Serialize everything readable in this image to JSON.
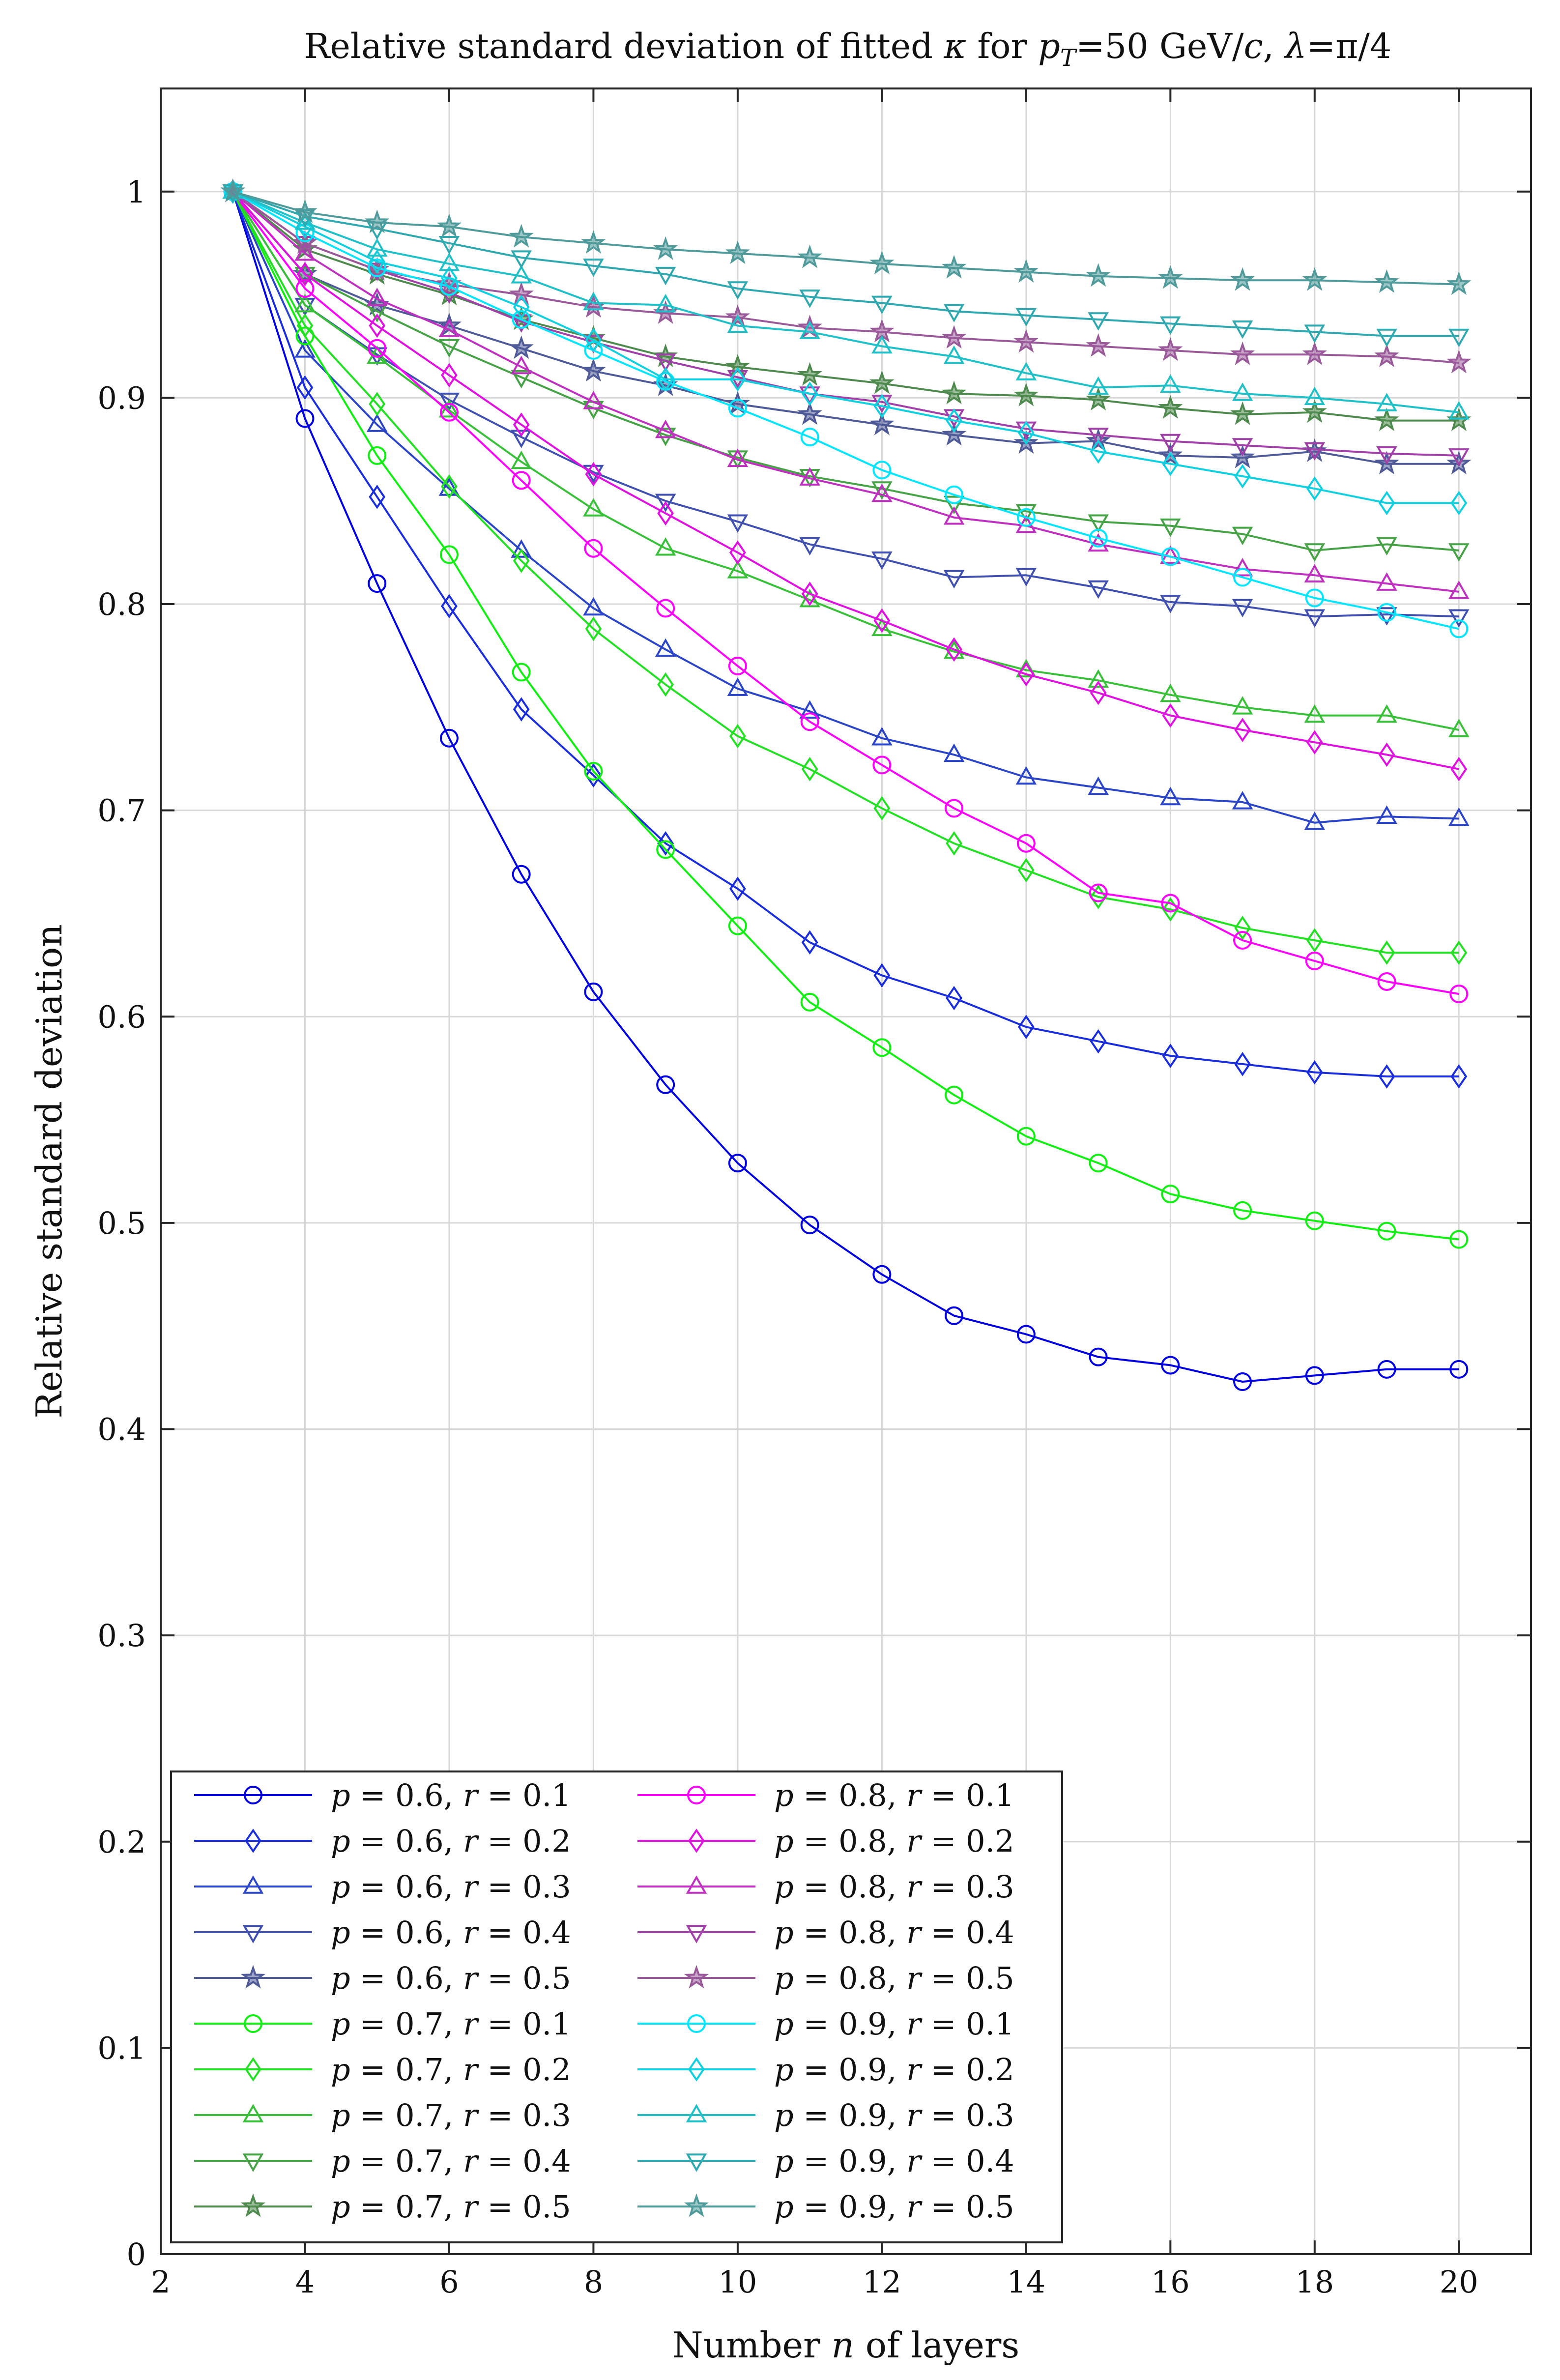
{
  "chart_data": {
    "type": "line",
    "title": "Relative standard deviation of fitted κ for p_T=50 GeV/c, λ=π/4",
    "title_parts": {
      "prefix": "Relative standard deviation of fitted ",
      "kappa": "κ",
      "for": " for ",
      "p": "p",
      "sub_T": "T",
      "pt_value": "=50 GeV/",
      "c": "c",
      "comma": ", ",
      "lambda": "λ",
      "lambda_value": "=π/4"
    },
    "xlabel": "Number n of layers",
    "xlabel_parts": {
      "before": "Number ",
      "n": "n",
      "after": " of layers"
    },
    "ylabel": "Relative standard deviation",
    "xlim": [
      2,
      21
    ],
    "ylim": [
      0,
      1.05
    ],
    "xticks": [
      2,
      4,
      6,
      8,
      10,
      12,
      14,
      16,
      18,
      20
    ],
    "yticks": [
      0,
      0.1,
      0.2,
      0.3,
      0.4,
      0.5,
      0.6,
      0.7,
      0.8,
      0.9,
      1
    ],
    "ytick_labels": [
      "0",
      "0.1",
      "0.2",
      "0.3",
      "0.4",
      "0.5",
      "0.6",
      "0.7",
      "0.8",
      "0.9",
      "1"
    ],
    "grid": true,
    "legend_position": "bottom-left",
    "x": [
      3,
      4,
      5,
      6,
      7,
      8,
      9,
      10,
      11,
      12,
      13,
      14,
      15,
      16,
      17,
      18,
      19,
      20
    ],
    "series": [
      {
        "name": "p = 0.6, r = 0.1",
        "p": "0.6",
        "r": "0.1",
        "color": "#0000e0",
        "marker": "circle",
        "values": [
          1.0,
          0.89,
          0.81,
          0.735,
          0.669,
          0.612,
          0.567,
          0.529,
          0.499,
          0.475,
          0.455,
          0.446,
          0.435,
          0.431,
          0.423,
          0.426,
          0.429,
          0.429
        ]
      },
      {
        "name": "p = 0.6, r = 0.2",
        "p": "0.6",
        "r": "0.2",
        "color": "#1a2ddc",
        "marker": "diamond",
        "values": [
          1.0,
          0.905,
          0.852,
          0.799,
          0.749,
          0.717,
          0.684,
          0.662,
          0.636,
          0.62,
          0.609,
          0.595,
          0.588,
          0.581,
          0.577,
          0.573,
          0.571,
          0.571
        ]
      },
      {
        "name": "p = 0.6, r = 0.3",
        "p": "0.6",
        "r": "0.3",
        "color": "#2b45c8",
        "marker": "triangle-up",
        "values": [
          1.0,
          0.923,
          0.887,
          0.856,
          0.826,
          0.798,
          0.778,
          0.759,
          0.748,
          0.735,
          0.727,
          0.716,
          0.711,
          0.706,
          0.704,
          0.694,
          0.697,
          0.696
        ]
      },
      {
        "name": "p = 0.6, r = 0.4",
        "p": "0.6",
        "r": "0.4",
        "color": "#3f50b0",
        "marker": "triangle-down",
        "values": [
          1.0,
          0.945,
          0.921,
          0.899,
          0.881,
          0.864,
          0.85,
          0.84,
          0.829,
          0.822,
          0.813,
          0.814,
          0.808,
          0.801,
          0.799,
          0.794,
          0.795,
          0.794
        ]
      },
      {
        "name": "p = 0.6, r = 0.5",
        "p": "0.6",
        "r": "0.5",
        "color": "#4f5a98",
        "marker": "star",
        "values": [
          1.0,
          0.96,
          0.945,
          0.935,
          0.924,
          0.913,
          0.906,
          0.897,
          0.892,
          0.887,
          0.882,
          0.878,
          0.879,
          0.872,
          0.871,
          0.874,
          0.868,
          0.868
        ]
      },
      {
        "name": "p = 0.7, r = 0.1",
        "p": "0.7",
        "r": "0.1",
        "color": "#10f010",
        "marker": "circle",
        "values": [
          1.0,
          0.93,
          0.872,
          0.824,
          0.767,
          0.719,
          0.681,
          0.644,
          0.607,
          0.585,
          0.562,
          0.542,
          0.529,
          0.514,
          0.506,
          0.501,
          0.496,
          0.492
        ]
      },
      {
        "name": "p = 0.7, r = 0.2",
        "p": "0.7",
        "r": "0.2",
        "color": "#22e022",
        "marker": "diamond",
        "values": [
          1.0,
          0.935,
          0.897,
          0.857,
          0.821,
          0.788,
          0.761,
          0.736,
          0.72,
          0.701,
          0.684,
          0.671,
          0.658,
          0.652,
          0.643,
          0.637,
          0.631,
          0.631
        ]
      },
      {
        "name": "p = 0.7, r = 0.3",
        "p": "0.7",
        "r": "0.3",
        "color": "#38c038",
        "marker": "triangle-up",
        "values": [
          1.0,
          0.945,
          0.92,
          0.894,
          0.869,
          0.846,
          0.827,
          0.816,
          0.802,
          0.788,
          0.777,
          0.768,
          0.763,
          0.756,
          0.75,
          0.746,
          0.746,
          0.739
        ]
      },
      {
        "name": "p = 0.7, r = 0.4",
        "p": "0.7",
        "r": "0.4",
        "color": "#45a245",
        "marker": "triangle-down",
        "values": [
          1.0,
          0.96,
          0.942,
          0.925,
          0.91,
          0.895,
          0.882,
          0.871,
          0.862,
          0.856,
          0.849,
          0.845,
          0.84,
          0.838,
          0.834,
          0.826,
          0.829,
          0.826
        ]
      },
      {
        "name": "p = 0.7, r = 0.5",
        "p": "0.7",
        "r": "0.5",
        "color": "#4e8a4e",
        "marker": "star",
        "values": [
          1.0,
          0.972,
          0.96,
          0.95,
          0.938,
          0.929,
          0.92,
          0.915,
          0.911,
          0.907,
          0.902,
          0.901,
          0.899,
          0.895,
          0.892,
          0.893,
          0.889,
          0.889
        ]
      },
      {
        "name": "p = 0.8, r = 0.1",
        "p": "0.8",
        "r": "0.1",
        "color": "#ff00ff",
        "marker": "circle",
        "values": [
          1.0,
          0.953,
          0.924,
          0.893,
          0.86,
          0.827,
          0.798,
          0.77,
          0.743,
          0.722,
          0.701,
          0.684,
          0.66,
          0.655,
          0.637,
          0.627,
          0.617,
          0.611
        ]
      },
      {
        "name": "p = 0.8, r = 0.2",
        "p": "0.8",
        "r": "0.2",
        "color": "#e010e0",
        "marker": "diamond",
        "values": [
          1.0,
          0.96,
          0.935,
          0.911,
          0.887,
          0.863,
          0.844,
          0.825,
          0.805,
          0.792,
          0.778,
          0.766,
          0.757,
          0.746,
          0.739,
          0.733,
          0.727,
          0.72
        ]
      },
      {
        "name": "p = 0.8, r = 0.3",
        "p": "0.8",
        "r": "0.3",
        "color": "#c030c0",
        "marker": "triangle-up",
        "values": [
          1.0,
          0.97,
          0.948,
          0.933,
          0.915,
          0.898,
          0.884,
          0.87,
          0.861,
          0.853,
          0.842,
          0.838,
          0.829,
          0.823,
          0.817,
          0.814,
          0.81,
          0.806
        ]
      },
      {
        "name": "p = 0.8, r = 0.4",
        "p": "0.8",
        "r": "0.4",
        "color": "#a040a8",
        "marker": "triangle-down",
        "values": [
          1.0,
          0.975,
          0.962,
          0.951,
          0.937,
          0.927,
          0.918,
          0.91,
          0.902,
          0.898,
          0.891,
          0.885,
          0.882,
          0.879,
          0.877,
          0.875,
          0.873,
          0.872
        ]
      },
      {
        "name": "p = 0.8, r = 0.5",
        "p": "0.8",
        "r": "0.5",
        "color": "#9a5a9a",
        "marker": "star",
        "values": [
          1.0,
          0.975,
          0.962,
          0.955,
          0.95,
          0.944,
          0.941,
          0.939,
          0.934,
          0.932,
          0.929,
          0.927,
          0.925,
          0.923,
          0.921,
          0.921,
          0.92,
          0.917
        ]
      },
      {
        "name": "p = 0.9, r = 0.1",
        "p": "0.9",
        "r": "0.1",
        "color": "#00e6ff",
        "marker": "circle",
        "values": [
          1.0,
          0.98,
          0.963,
          0.954,
          0.938,
          0.923,
          0.908,
          0.895,
          0.881,
          0.865,
          0.853,
          0.842,
          0.832,
          0.823,
          0.813,
          0.803,
          0.796,
          0.788
        ]
      },
      {
        "name": "p = 0.9, r = 0.2",
        "p": "0.9",
        "r": "0.2",
        "color": "#10d0e0",
        "marker": "diamond",
        "values": [
          1.0,
          0.983,
          0.966,
          0.958,
          0.944,
          0.928,
          0.909,
          0.909,
          0.902,
          0.896,
          0.889,
          0.883,
          0.874,
          0.868,
          0.862,
          0.856,
          0.849,
          0.849
        ]
      },
      {
        "name": "p = 0.9, r = 0.3",
        "p": "0.9",
        "r": "0.3",
        "color": "#20c0c8",
        "marker": "triangle-up",
        "values": [
          1.0,
          0.985,
          0.972,
          0.965,
          0.959,
          0.946,
          0.945,
          0.935,
          0.932,
          0.925,
          0.92,
          0.912,
          0.905,
          0.906,
          0.902,
          0.9,
          0.897,
          0.893
        ]
      },
      {
        "name": "p = 0.9, r = 0.4",
        "p": "0.9",
        "r": "0.4",
        "color": "#30a8b0",
        "marker": "triangle-down",
        "values": [
          1.0,
          0.988,
          0.982,
          0.975,
          0.968,
          0.964,
          0.96,
          0.953,
          0.949,
          0.946,
          0.942,
          0.94,
          0.938,
          0.936,
          0.934,
          0.932,
          0.93,
          0.93
        ]
      },
      {
        "name": "p = 0.9, r = 0.5",
        "p": "0.9",
        "r": "0.5",
        "color": "#4f9a9a",
        "marker": "star",
        "values": [
          1.0,
          0.99,
          0.985,
          0.983,
          0.978,
          0.975,
          0.972,
          0.97,
          0.968,
          0.965,
          0.963,
          0.961,
          0.959,
          0.958,
          0.957,
          0.957,
          0.956,
          0.955
        ]
      }
    ]
  }
}
